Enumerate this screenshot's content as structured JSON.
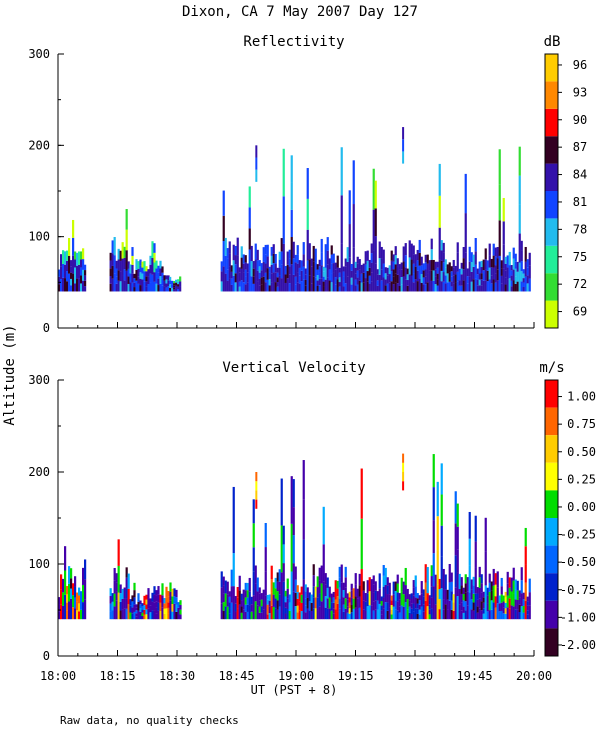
{
  "page": {
    "title": "Dixon, CA  7 May 2007  Day 127",
    "y_axis_label": "Altitude (m)",
    "footer": "Raw data, no quality checks"
  },
  "x_axis": {
    "label": "UT  (PST + 8)",
    "ticks": [
      "18:00",
      "18:15",
      "18:30",
      "18:45",
      "19:00",
      "19:15",
      "19:30",
      "19:45",
      "20:00"
    ]
  },
  "chart_data": [
    {
      "type": "heatmap",
      "title": "Reflectivity",
      "units": "dB",
      "xlabel": "UT  (PST + 8)",
      "ylabel": "Altitude (m)",
      "xlim": [
        "18:00",
        "20:00"
      ],
      "ylim": [
        0,
        300
      ],
      "yticks": [
        "0",
        "100",
        "200",
        "300"
      ],
      "colorbar": {
        "ticks": [
          "69",
          "72",
          "75",
          "78",
          "81",
          "84",
          "87",
          "90",
          "93",
          "96"
        ],
        "colors": [
          "#ccff00",
          "#33dd33",
          "#22ee99",
          "#22bbee",
          "#1144ff",
          "#3311aa",
          "#330022",
          "#ff0000",
          "#ff8800",
          "#ffcc00"
        ]
      },
      "features": [
        {
          "start": "18:00",
          "end": "18:07",
          "base": 40,
          "top": 100,
          "peak": 120
        },
        {
          "start": "18:13",
          "end": "18:18",
          "base": 40,
          "top": 100,
          "peak": 140
        },
        {
          "start": "18:18",
          "end": "18:28",
          "base": 40,
          "top": 80,
          "peak": 100
        },
        {
          "start": "18:28",
          "end": "18:31",
          "base": 40,
          "top": 60,
          "peak": 60
        },
        {
          "start": "18:41",
          "end": "19:59",
          "base": 40,
          "top": 100,
          "peak": 220
        },
        {
          "start": "18:50",
          "end": "18:50",
          "base": 160,
          "top": 200,
          "peak": 200
        },
        {
          "start": "19:27",
          "end": "19:27",
          "base": 180,
          "top": 220,
          "peak": 220
        }
      ]
    },
    {
      "type": "heatmap",
      "title": "Vertical Velocity",
      "units": "m/s",
      "xlabel": "UT  (PST + 8)",
      "ylabel": "Altitude (m)",
      "xlim": [
        "18:00",
        "20:00"
      ],
      "ylim": [
        0,
        300
      ],
      "yticks": [
        "0",
        "100",
        "200",
        "300"
      ],
      "colorbar": {
        "ticks": [
          "1.00",
          "0.75",
          "0.50",
          "0.25",
          "0.00",
          "-0.25",
          "-0.50",
          "-0.75",
          "-1.00",
          "-2.00"
        ],
        "colors": [
          "#ff0000",
          "#ff6600",
          "#ffcc00",
          "#ffff00",
          "#00dd00",
          "#00aaff",
          "#0066ff",
          "#0022cc",
          "#4400aa",
          "#330022"
        ]
      },
      "features": [
        {
          "start": "18:00",
          "end": "18:07",
          "base": 40,
          "top": 100,
          "peak": 120
        },
        {
          "start": "18:13",
          "end": "18:18",
          "base": 40,
          "top": 100,
          "peak": 140
        },
        {
          "start": "18:18",
          "end": "18:31",
          "base": 40,
          "top": 80,
          "peak": 80
        },
        {
          "start": "18:41",
          "end": "19:59",
          "base": 40,
          "top": 100,
          "peak": 220
        },
        {
          "start": "18:50",
          "end": "18:50",
          "base": 160,
          "top": 200,
          "peak": 200
        },
        {
          "start": "19:27",
          "end": "19:27",
          "base": 180,
          "top": 220,
          "peak": 220
        }
      ]
    }
  ]
}
